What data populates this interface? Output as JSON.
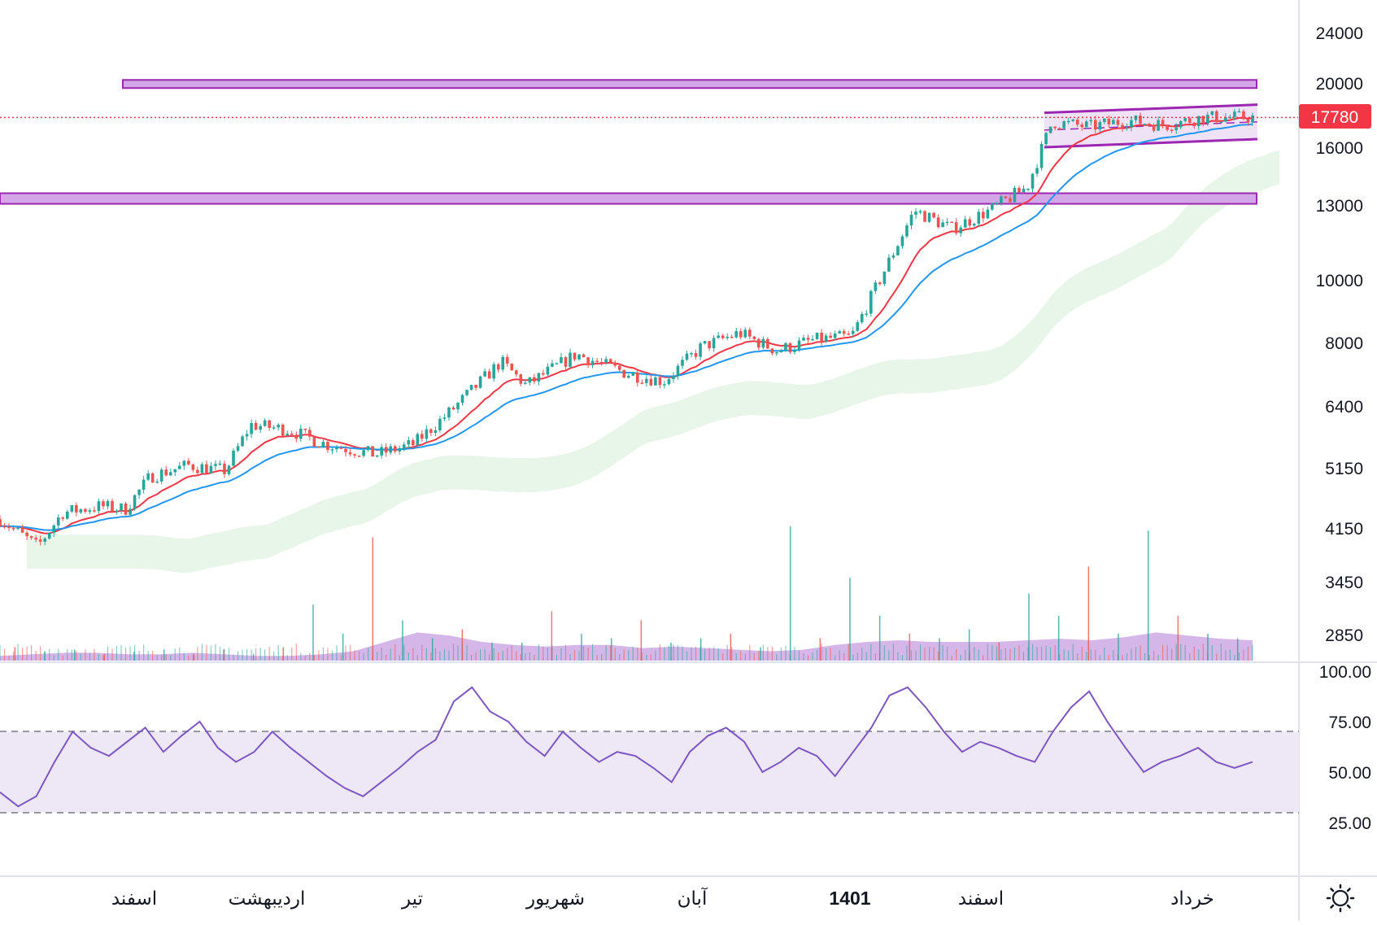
{
  "colors": {
    "up": "#26a69a",
    "down": "#ef5350",
    "ma_fast": "#f23645",
    "ma_slow": "#2196f3",
    "cloud_up": "#e8f5e9",
    "cloud_down": "#fdecec",
    "zone_fill": "#d3a6e8",
    "zone_stroke": "#9c27b0",
    "channel_fill": "#ead6f2",
    "volume_area": "#c79ee0",
    "rsi_line": "#7e57c2",
    "rsi_band": "#ede7f6",
    "price_tag_bg": "#f23645",
    "separator": "#e0e3eb"
  },
  "price_axis": {
    "ticks": [
      "24000",
      "20000",
      "16000",
      "13000",
      "10000",
      "8000",
      "6400",
      "5150",
      "4150",
      "3450",
      "2850"
    ],
    "last_price": "17780"
  },
  "rsi_axis": {
    "ticks": [
      "100.00",
      "75.00",
      "50.00",
      "25.00"
    ]
  },
  "time_axis": {
    "labels": [
      "اسفند",
      "اردیبهشت",
      "تیر",
      "شهریور",
      "آبان",
      "1401",
      "اسفند",
      "خرداد"
    ],
    "bold_label": "1401"
  },
  "settings_icon": "gear-icon",
  "chart_data": {
    "type": "candlestick",
    "scale": "log",
    "price_ticks": [
      24000,
      20000,
      16000,
      13000,
      10000,
      8000,
      6400,
      5150,
      4150,
      3450,
      2850
    ],
    "last_price": 17780,
    "resistance_zones": [
      {
        "low": 19900,
        "high": 20300
      },
      {
        "low": 13100,
        "high": 13600
      }
    ],
    "channel": {
      "lower": 16000,
      "upper": 18600,
      "mid": 17300
    },
    "price_path": [
      {
        "x": 0.0,
        "p": 4300
      },
      {
        "x": 0.03,
        "p": 3900
      },
      {
        "x": 0.05,
        "p": 4400
      },
      {
        "x": 0.08,
        "p": 4500
      },
      {
        "x": 0.1,
        "p": 4450
      },
      {
        "x": 0.12,
        "p": 5000
      },
      {
        "x": 0.15,
        "p": 5200
      },
      {
        "x": 0.18,
        "p": 5100
      },
      {
        "x": 0.2,
        "p": 6000
      },
      {
        "x": 0.23,
        "p": 5900
      },
      {
        "x": 0.26,
        "p": 5600
      },
      {
        "x": 0.3,
        "p": 5400
      },
      {
        "x": 0.33,
        "p": 5600
      },
      {
        "x": 0.36,
        "p": 6300
      },
      {
        "x": 0.4,
        "p": 7500
      },
      {
        "x": 0.42,
        "p": 6900
      },
      {
        "x": 0.46,
        "p": 7700
      },
      {
        "x": 0.5,
        "p": 7200
      },
      {
        "x": 0.53,
        "p": 7000
      },
      {
        "x": 0.56,
        "p": 7900
      },
      {
        "x": 0.59,
        "p": 8300
      },
      {
        "x": 0.62,
        "p": 7800
      },
      {
        "x": 0.65,
        "p": 8100
      },
      {
        "x": 0.68,
        "p": 8200
      },
      {
        "x": 0.7,
        "p": 9800
      },
      {
        "x": 0.73,
        "p": 12800
      },
      {
        "x": 0.76,
        "p": 12000
      },
      {
        "x": 0.79,
        "p": 12800
      },
      {
        "x": 0.82,
        "p": 13900
      },
      {
        "x": 0.84,
        "p": 17500
      },
      {
        "x": 0.87,
        "p": 17200
      },
      {
        "x": 0.9,
        "p": 17600
      },
      {
        "x": 0.93,
        "p": 17300
      },
      {
        "x": 0.96,
        "p": 17780
      }
    ],
    "rsi": {
      "levels": [
        70,
        30
      ],
      "axis_ticks": [
        100,
        75,
        50,
        25
      ],
      "values": [
        40,
        33,
        38,
        55,
        70,
        62,
        58,
        65,
        72,
        60,
        68,
        75,
        62,
        55,
        60,
        70,
        62,
        55,
        48,
        42,
        38,
        45,
        52,
        60,
        66,
        85,
        92,
        80,
        75,
        65,
        58,
        70,
        62,
        55,
        60,
        58,
        52,
        45,
        60,
        68,
        72,
        65,
        50,
        55,
        62,
        58,
        48,
        60,
        72,
        88,
        92,
        82,
        70,
        60,
        65,
        62,
        58,
        55,
        70,
        82,
        90,
        75,
        62,
        50,
        55,
        58,
        62,
        55,
        52,
        55
      ]
    },
    "volume": {
      "spikes": [
        0.06,
        0.04,
        0.05,
        0.03,
        0.04,
        0.05,
        0.03,
        0.05,
        0.03,
        0.06,
        0.25,
        0.12,
        0.55,
        0.18,
        0.1,
        0.14,
        0.08,
        0.08,
        0.22,
        0.12,
        0.1,
        0.18,
        0.08,
        0.1,
        0.12,
        0.06,
        0.6,
        0.1,
        0.37,
        0.2,
        0.12,
        0.1,
        0.14,
        0.08,
        0.3,
        0.2,
        0.42,
        0.12,
        0.58,
        0.2,
        0.12,
        0.1
      ],
      "area": [
        0.03,
        0.04,
        0.05,
        0.05,
        0.04,
        0.04,
        0.05,
        0.04,
        0.03,
        0.03,
        0.04,
        0.06,
        0.12,
        0.18,
        0.16,
        0.12,
        0.1,
        0.09,
        0.1,
        0.1,
        0.08,
        0.09,
        0.08,
        0.07,
        0.06,
        0.07,
        0.1,
        0.12,
        0.13,
        0.12,
        0.12,
        0.12,
        0.13,
        0.14,
        0.13,
        0.15,
        0.18,
        0.16,
        0.14,
        0.13
      ]
    }
  }
}
